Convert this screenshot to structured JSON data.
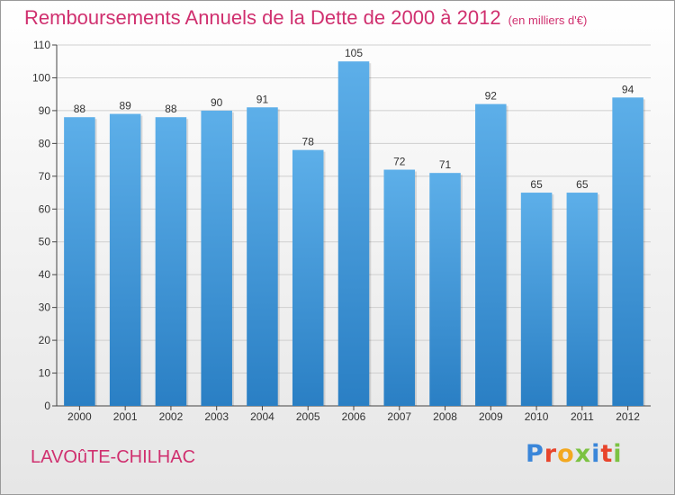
{
  "colors": {
    "title": "#d0306f",
    "bar_top": "#5dafe9",
    "bar_bottom": "#2a7fc4",
    "text": "#333333",
    "grid": "#cfcfcf"
  },
  "chart_data": {
    "type": "bar",
    "title": "Remboursements Annuels de la Dette de 2000 à 2012",
    "unit_label": "(en milliers d'€)",
    "categories": [
      "2000",
      "2001",
      "2002",
      "2003",
      "2004",
      "2005",
      "2006",
      "2007",
      "2008",
      "2009",
      "2010",
      "2011",
      "2012"
    ],
    "values": [
      88,
      89,
      88,
      90,
      91,
      78,
      105,
      72,
      71,
      92,
      65,
      65,
      94
    ],
    "ylim": [
      0,
      110
    ],
    "yticks": [
      0,
      10,
      20,
      30,
      40,
      50,
      60,
      70,
      80,
      90,
      100,
      110
    ],
    "grid": true,
    "legend": "none"
  },
  "footer": {
    "commune": "LAVOûTE-CHILHAC",
    "logo_text": "Proxiti",
    "logo_colors": [
      "#3a86d9",
      "#e8452c",
      "#f3a81f",
      "#7cc242",
      "#3a86d9",
      "#e8452c",
      "#7cc242"
    ]
  }
}
